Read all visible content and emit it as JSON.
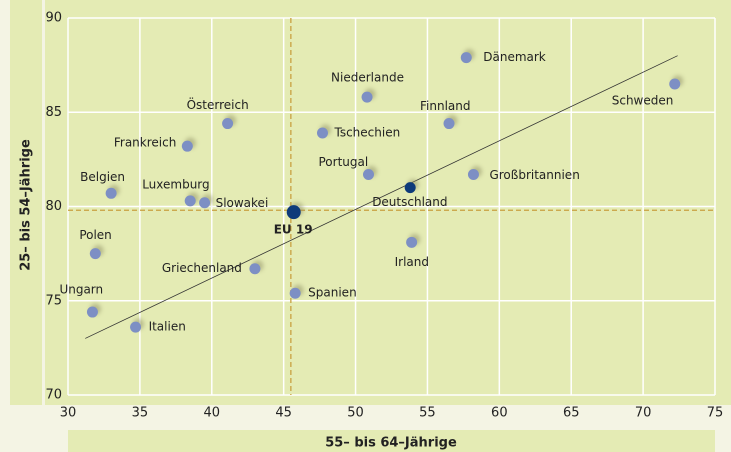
{
  "chart_data": {
    "type": "scatter",
    "x_label": "55– bis 64–Jährige",
    "y_label": "25– bis 54–Jährige",
    "xlim": [
      30,
      75
    ],
    "xticks": [
      30,
      35,
      40,
      45,
      50,
      55,
      60,
      65,
      70,
      75
    ],
    "ylim": [
      70,
      90
    ],
    "yticks": [
      70,
      75,
      80,
      85,
      90
    ],
    "grid": true,
    "reference_lines": {
      "x": 45.5,
      "y": 79.8,
      "color": "#c8a040"
    },
    "trendline": {
      "x": [
        31.2,
        72.4
      ],
      "y": [
        73.0,
        88.0
      ],
      "color": "#333333"
    },
    "points": [
      {
        "label": "Dänemark",
        "x": 57.7,
        "y": 87.9,
        "color": "#7d8fc4"
      },
      {
        "label": "Schweden",
        "x": 72.2,
        "y": 86.5,
        "color": "#7d8fc4"
      },
      {
        "label": "Niederlande",
        "x": 50.8,
        "y": 85.8,
        "color": "#7d8fc4"
      },
      {
        "label": "Finnland",
        "x": 56.5,
        "y": 84.4,
        "color": "#7d8fc4"
      },
      {
        "label": "Österreich",
        "x": 41.1,
        "y": 84.4,
        "color": "#7d8fc4"
      },
      {
        "label": "Tschechien",
        "x": 47.7,
        "y": 83.9,
        "color": "#7d8fc4"
      },
      {
        "label": "Frankreich",
        "x": 38.3,
        "y": 83.2,
        "color": "#7d8fc4"
      },
      {
        "label": "Portugal",
        "x": 50.9,
        "y": 81.7,
        "color": "#7d8fc4"
      },
      {
        "label": "Großbritannien",
        "x": 58.2,
        "y": 81.7,
        "color": "#7d8fc4"
      },
      {
        "label": "Deutschland",
        "x": 53.8,
        "y": 81.0,
        "color": "#0d3a7a"
      },
      {
        "label": "Belgien",
        "x": 33.0,
        "y": 80.7,
        "color": "#7d8fc4"
      },
      {
        "label": "Luxemburg",
        "x": 38.5,
        "y": 80.3,
        "color": "#7d8fc4"
      },
      {
        "label": "Slowakei",
        "x": 39.5,
        "y": 80.2,
        "color": "#7d8fc4"
      },
      {
        "label": "EU 19",
        "x": 45.7,
        "y": 79.7,
        "color": "#0d3a7a"
      },
      {
        "label": "Irland",
        "x": 53.9,
        "y": 78.1,
        "color": "#7d8fc4"
      },
      {
        "label": "Polen",
        "x": 31.9,
        "y": 77.5,
        "color": "#7d8fc4"
      },
      {
        "label": "Griechenland",
        "x": 43.0,
        "y": 76.7,
        "color": "#7d8fc4"
      },
      {
        "label": "Spanien",
        "x": 45.8,
        "y": 75.4,
        "color": "#7d8fc4"
      },
      {
        "label": "Ungarn",
        "x": 31.7,
        "y": 74.4,
        "color": "#7d8fc4"
      },
      {
        "label": "Italien",
        "x": 34.7,
        "y": 73.6,
        "color": "#7d8fc4"
      }
    ]
  }
}
